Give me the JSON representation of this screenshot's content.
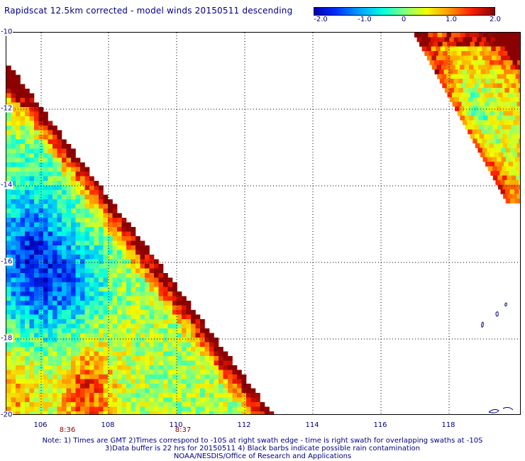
{
  "title": "Rapidscat 12.5km corrected - model winds 20150511 descending",
  "colorbar": {
    "ticks": [
      "-2.0",
      "-1.0",
      "0",
      "1.0",
      "2.0"
    ],
    "range": [
      -2.0,
      2.0
    ],
    "colors": [
      "#0000b0",
      "#0030ff",
      "#00a8ff",
      "#00ffe0",
      "#80ff80",
      "#f0ff00",
      "#ffa000",
      "#ff2000",
      "#8b0000"
    ]
  },
  "map": {
    "lat_labels": [
      "-10",
      "-12",
      "-14",
      "-16",
      "-18",
      "-20"
    ],
    "lon_labels": [
      "106",
      "108",
      "110",
      "112",
      "114",
      "116",
      "118"
    ],
    "lon_range": [
      105,
      119.8
    ],
    "lat_range": [
      -10,
      -20
    ],
    "swath_times": [
      "8:36",
      "8:37"
    ],
    "swaths": [
      {
        "name": "left-swath",
        "description_values": "difference corrected - model",
        "dominant_range": [
          -2.0,
          2.0
        ]
      },
      {
        "name": "right-swath",
        "description_values": "difference corrected - model",
        "dominant_range": [
          0.0,
          2.0
        ]
      }
    ]
  },
  "notes": {
    "line1": "Note: 1) Times are GMT 2)Times correspond to -10S at right swath edge - time is right swath for overlapping swaths at -10S",
    "line2": "3)Data buffer is 22 hrs for 20150511 4) Black barbs indicate possible rain contamination",
    "line3": "NOAA/NESDIS/Office of Research and Applications"
  }
}
